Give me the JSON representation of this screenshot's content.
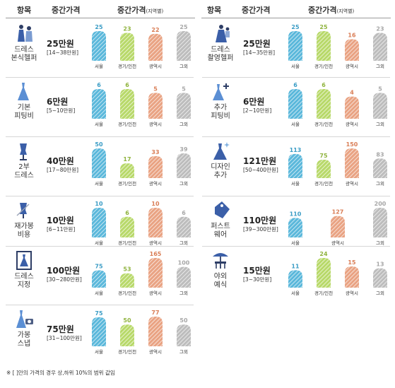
{
  "headers": {
    "left": {
      "item": "항목",
      "median": "중간가격",
      "regional": "중간가격",
      "regional_sub": "(지역별)"
    },
    "right": {
      "item": "항목",
      "median": "중간가격",
      "regional": "중간가격",
      "regional_sub": "(지역별)"
    }
  },
  "colors": {
    "seoul": "#5bb8db",
    "gyeonggi": "#b8d96a",
    "metro": "#e9a383",
    "other": "#bdbdbd"
  },
  "footnote": "※ [ ]안의 가격의 경우 상,하위 10%의 범위 값임",
  "chart_data": [
    {
      "type": "bar",
      "item": "드레스 본식헬퍼",
      "icon": "bride-helper-icon",
      "median": "25만원",
      "range": "[14~38만원]",
      "categories": [
        "서울",
        "경기/인천",
        "광역시",
        "그외"
      ],
      "values": [
        25,
        23,
        22,
        25
      ]
    },
    {
      "type": "bar",
      "item": "기본 피팅비",
      "icon": "dress-icon",
      "median": "6만원",
      "range": "[5~10만원]",
      "categories": [
        "서울",
        "경기/인천",
        "광역시",
        "그외"
      ],
      "values": [
        6,
        6,
        5,
        5
      ]
    },
    {
      "type": "bar",
      "item": "2부 드레스",
      "icon": "mannequin-icon",
      "median": "40만원",
      "range": "[17~80만원]",
      "categories": [
        "서울",
        "경기/인천",
        "광역시",
        "그외"
      ],
      "values": [
        50,
        17,
        33,
        39
      ]
    },
    {
      "type": "bar",
      "item": "재가봉 비용",
      "icon": "sewing-mannequin-icon",
      "median": "10만원",
      "range": "[6~11만원]",
      "categories": [
        "서울",
        "경기/인천",
        "광역시",
        "그외"
      ],
      "values": [
        10,
        6,
        10,
        6
      ]
    },
    {
      "type": "bar",
      "item": "드레스 지정",
      "icon": "framed-dress-icon",
      "median": "100만원",
      "range": "[30~280만원]",
      "categories": [
        "서울",
        "경기/인천",
        "광역시",
        "그외"
      ],
      "values": [
        75,
        53,
        165,
        100
      ]
    },
    {
      "type": "bar",
      "item": "가봉 스냅",
      "icon": "dress-camera-icon",
      "median": "75만원",
      "range": "[31~100만원]",
      "categories": [
        "서울",
        "경기/인천",
        "광역시",
        "그외"
      ],
      "values": [
        75,
        50,
        77,
        50
      ]
    },
    {
      "type": "bar",
      "item": "드레스 촬영헬퍼",
      "icon": "couple-helper-icon",
      "median": "25만원",
      "range": "[14~35만원]",
      "categories": [
        "서울",
        "경기/인천",
        "광역시",
        "그외"
      ],
      "values": [
        25,
        25,
        16,
        23
      ]
    },
    {
      "type": "bar",
      "item": "추가 피팅비",
      "icon": "dress-plus-icon",
      "median": "6만원",
      "range": "[2~10만원]",
      "categories": [
        "서울",
        "경기/인천",
        "광역시",
        "그외"
      ],
      "values": [
        6,
        6,
        4,
        5
      ]
    },
    {
      "type": "bar",
      "item": "디자인 추가",
      "icon": "sparkle-dress-icon",
      "median": "121만원",
      "range": "[50~400만원]",
      "categories": [
        "서울",
        "경기/인천",
        "광역시",
        "그외"
      ],
      "values": [
        113,
        75,
        150,
        83
      ]
    },
    {
      "type": "bar",
      "item": "퍼스트 웨어",
      "icon": "tag-icon",
      "median": "110만원",
      "range": "[39~300만원]",
      "categories": [
        "서울",
        "광역시",
        "그외"
      ],
      "values": [
        110,
        127,
        200
      ]
    },
    {
      "type": "bar",
      "item": "야외 예식",
      "icon": "outdoor-table-icon",
      "median": "15만원",
      "range": "[3~30만원]",
      "categories": [
        "서울",
        "경기/인천",
        "광역시",
        "그외"
      ],
      "values": [
        11,
        24,
        15,
        13
      ]
    }
  ]
}
